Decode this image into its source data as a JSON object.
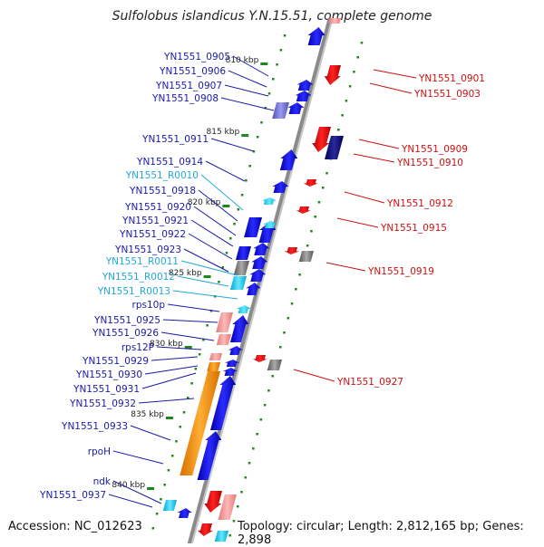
{
  "title": "Sulfolobus islandicus Y.N.15.51, complete genome",
  "accession": "Accession: NC_012623",
  "topology": "Topology: circular; Length: 2,812,165 bp; Genes: 2,898",
  "colors": {
    "left_label": "#1a1aa8",
    "rna_label": "#22a8d8",
    "right_label": "#cc1111",
    "backbone": "#8a8a8a",
    "tick": "#1b8a1b"
  },
  "scale_labels": [
    "810 kbp",
    "815 kbp",
    "820 kbp",
    "825 kbp",
    "830 kbp",
    "835 kbp",
    "840 kbp"
  ],
  "left_labels": [
    "YN1551_0905",
    "YN1551_0906",
    "YN1551_0907",
    "YN1551_0908",
    "YN1551_0911",
    "YN1551_0914",
    "YN1551_R0010",
    "YN1551_0918",
    "YN1551_0920",
    "YN1551_0921",
    "YN1551_0922",
    "YN1551_0923",
    "YN1551_R0011",
    "YN1551_R0012",
    "YN1551_R0013",
    "rps10p",
    "YN1551_0925",
    "YN1551_0926",
    "rps12P",
    "YN1551_0929",
    "YN1551_0930",
    "YN1551_0931",
    "YN1551_0932",
    "YN1551_0933",
    "rpoH",
    "ndk",
    "YN1551_0937"
  ],
  "rna_labels": [
    "YN1551_R0010",
    "YN1551_R0011",
    "YN1551_R0012",
    "YN1551_R0013"
  ],
  "right_labels": [
    "YN1551_0901",
    "YN1551_0903",
    "YN1551_0909",
    "YN1551_0910",
    "YN1551_0912",
    "YN1551_0915",
    "YN1551_0919",
    "YN1551_0927"
  ]
}
